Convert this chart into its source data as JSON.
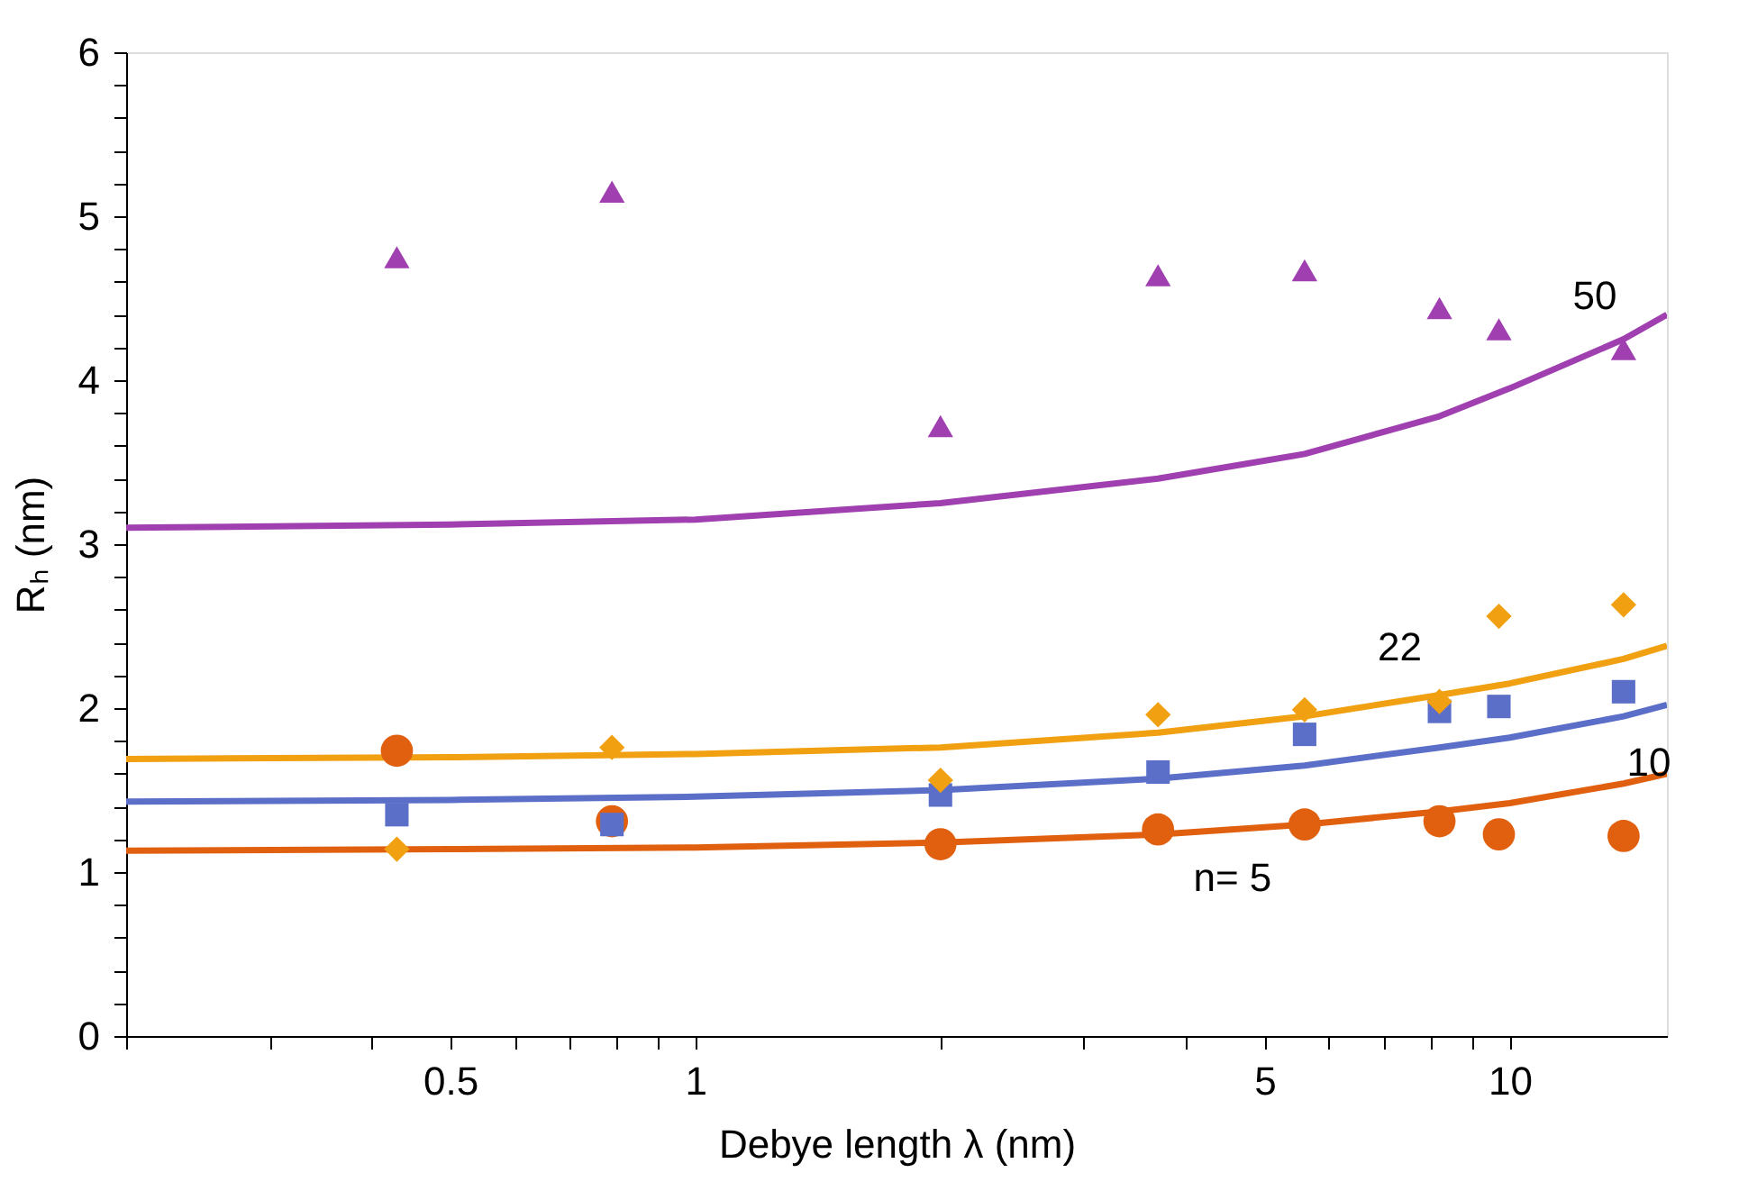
{
  "chart_data": {
    "type": "scatter",
    "xlabel": "Debye length λ (nm)",
    "ylabel": "Rₕ (nm)",
    "log": "x",
    "grid": false,
    "xlim": [
      0.2,
      15.6
    ],
    "ylim": [
      0,
      6
    ],
    "xticks": [
      {
        "value": 0.2,
        "label": null
      },
      {
        "value": 0.3,
        "label": null
      },
      {
        "value": 0.4,
        "label": null
      },
      0.5,
      {
        "value": 0.6,
        "label": null
      },
      {
        "value": 0.7,
        "label": null
      },
      {
        "value": 0.8,
        "label": null
      },
      {
        "value": 0.9,
        "label": null
      },
      1,
      {
        "value": 2,
        "label": null
      },
      {
        "value": 3,
        "label": null
      },
      {
        "value": 4,
        "label": null
      },
      5,
      {
        "value": 6,
        "label": null
      },
      {
        "value": 7,
        "label": null
      },
      {
        "value": 8,
        "label": null
      },
      {
        "value": 9,
        "label": null
      },
      10
    ],
    "yticks": [
      0,
      {
        "value": 0.2,
        "label": null
      },
      {
        "value": 0.4,
        "label": null
      },
      {
        "value": 0.6,
        "label": null
      },
      {
        "value": 0.8,
        "label": null
      },
      1,
      {
        "value": 1.2,
        "label": null
      },
      {
        "value": 1.4,
        "label": null
      },
      {
        "value": 1.6,
        "label": null
      },
      {
        "value": 1.8,
        "label": null
      },
      2,
      {
        "value": 2.2,
        "label": null
      },
      {
        "value": 2.4,
        "label": null
      },
      {
        "value": 2.6,
        "label": null
      },
      {
        "value": 2.8,
        "label": null
      },
      3,
      {
        "value": 3.2,
        "label": null
      },
      {
        "value": 3.4,
        "label": null
      },
      {
        "value": 3.6,
        "label": null
      },
      {
        "value": 3.8,
        "label": null
      },
      4,
      {
        "value": 4.2,
        "label": null
      },
      {
        "value": 4.4,
        "label": null
      },
      {
        "value": 4.6,
        "label": null
      },
      {
        "value": 4.8,
        "label": null
      },
      5,
      {
        "value": 5.2,
        "label": null
      },
      {
        "value": 5.4,
        "label": null
      },
      {
        "value": 5.6,
        "label": null
      },
      {
        "value": 5.8,
        "label": null
      },
      6
    ],
    "x": [
      0.43,
      0.79,
      2.0,
      3.7,
      5.6,
      8.2,
      9.7,
      13.8
    ],
    "series": [
      {
        "type": "line",
        "marker": "none",
        "color": "#a040b0",
        "x": [
          0.2,
          0.5,
          1,
          2,
          3.7,
          5.6,
          8.2,
          10,
          13.8,
          15.6
        ],
        "values": [
          3.1,
          3.12,
          3.15,
          3.25,
          3.4,
          3.55,
          3.78,
          3.95,
          4.25,
          4.4
        ]
      },
      {
        "type": "line",
        "marker": "none",
        "color": "#f0a010",
        "x": [
          0.2,
          0.5,
          1,
          2,
          3.7,
          5.6,
          8.2,
          10,
          13.8,
          15.6
        ],
        "values": [
          1.69,
          1.7,
          1.72,
          1.76,
          1.85,
          1.95,
          2.08,
          2.15,
          2.3,
          2.38
        ]
      },
      {
        "type": "line",
        "marker": "none",
        "color": "#5b6fc8",
        "x": [
          0.2,
          0.5,
          1,
          2,
          3.7,
          5.6,
          8.2,
          10,
          13.8,
          15.6
        ],
        "values": [
          1.43,
          1.44,
          1.46,
          1.5,
          1.57,
          1.65,
          1.76,
          1.82,
          1.95,
          2.02
        ]
      },
      {
        "type": "line",
        "marker": "none",
        "color": "#e06010",
        "x": [
          0.2,
          0.5,
          1,
          2,
          3.7,
          5.6,
          8.2,
          10,
          13.8,
          15.6
        ],
        "values": [
          1.13,
          1.14,
          1.15,
          1.18,
          1.23,
          1.29,
          1.37,
          1.42,
          1.54,
          1.6
        ]
      },
      {
        "marker": "circle",
        "color": "#e06010",
        "values": [
          1.74,
          1.31,
          1.17,
          1.26,
          1.29,
          1.31,
          1.23,
          1.22
        ]
      },
      {
        "marker": "square",
        "color": "#5b6fc8",
        "values": [
          1.35,
          1.29,
          1.47,
          1.61,
          1.84,
          1.98,
          2.01,
          2.1
        ]
      },
      {
        "marker": "diamond",
        "color": "#f0a010",
        "values": [
          1.14,
          1.76,
          1.56,
          1.96,
          1.99,
          2.04,
          2.56,
          2.63
        ]
      },
      {
        "marker": "triangle",
        "color": "#a040b0",
        "values": [
          4.75,
          5.15,
          3.72,
          4.64,
          4.67,
          4.44,
          4.31,
          4.19
        ]
      }
    ],
    "annotations": [
      {
        "text": "50",
        "x": 13.8,
        "y": 4.25
      },
      {
        "text": "22",
        "x": 8.2,
        "y": 2.08
      },
      {
        "text": "10",
        "x": 13.8,
        "y": 1.95
      },
      {
        "text": "n= 5",
        "x": 5.6,
        "y": 1.29
      }
    ]
  }
}
